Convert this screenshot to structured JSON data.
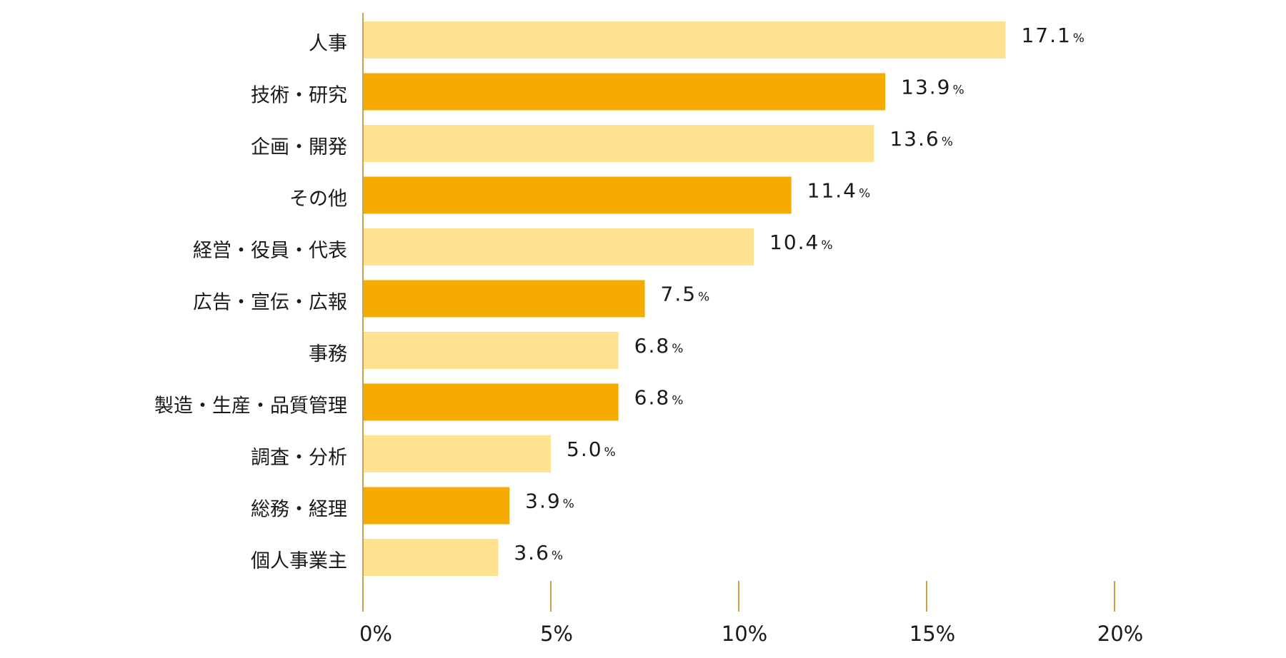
{
  "chart_data": {
    "type": "bar",
    "orientation": "horizontal",
    "categories": [
      "人事",
      "技術・研究",
      "企画・開発",
      "その他",
      "経営・役員・代表",
      "広告・宣伝・広報",
      "事務",
      "製造・生産・品質管理",
      "調査・分析",
      "総務・経理",
      "個人事業主"
    ],
    "values": [
      17.1,
      13.9,
      13.6,
      11.4,
      10.4,
      7.5,
      6.8,
      6.8,
      5.0,
      3.9,
      3.6
    ],
    "value_labels": [
      "17.1",
      "13.9",
      "13.6",
      "11.4",
      "10.4",
      "7.5",
      "6.8",
      "6.8",
      "5.0",
      "3.9",
      "3.6"
    ],
    "value_unit": "%",
    "xlim": [
      0,
      20
    ],
    "x_ticks": [
      0,
      5,
      10,
      15,
      20
    ],
    "x_tick_labels": [
      "0%",
      "5%",
      "10%",
      "15%",
      "20%"
    ],
    "bar_colors": [
      "#FEE290",
      "#F5AB00"
    ],
    "axis_color": "#C9A24A",
    "grid": false,
    "legend": "none",
    "title": "",
    "xlabel": "",
    "ylabel": ""
  }
}
